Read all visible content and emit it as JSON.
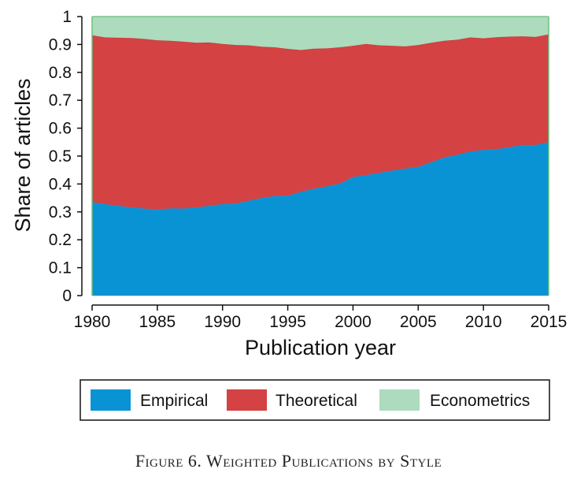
{
  "chart_data": {
    "type": "area",
    "stacked": true,
    "xlabel": "Publication year",
    "ylabel": "Share of articles",
    "xlim": [
      1980,
      2015
    ],
    "ylim": [
      0,
      1
    ],
    "xticks": [
      1980,
      1985,
      1990,
      1995,
      2000,
      2005,
      2010,
      2015
    ],
    "yticks": [
      0,
      0.1,
      0.2,
      0.3,
      0.4,
      0.5,
      0.6,
      0.7,
      0.8,
      0.9,
      1
    ],
    "ytick_labels": [
      "0",
      "0.1",
      "0.2",
      "0.3",
      "0.4",
      "0.5",
      "0.6",
      "0.7",
      "0.8",
      "0.9",
      "1"
    ],
    "grid": "horizontal",
    "legend_position": "bottom",
    "x": [
      1980,
      1981,
      1982,
      1983,
      1984,
      1985,
      1986,
      1987,
      1988,
      1989,
      1990,
      1991,
      1992,
      1993,
      1994,
      1995,
      1996,
      1997,
      1998,
      1999,
      2000,
      2001,
      2002,
      2003,
      2004,
      2005,
      2006,
      2007,
      2008,
      2009,
      2010,
      2011,
      2012,
      2013,
      2014,
      2015
    ],
    "series": [
      {
        "name": "Empirical",
        "color": "#0a93d4",
        "values": [
          0.335,
          0.328,
          0.322,
          0.316,
          0.312,
          0.308,
          0.313,
          0.312,
          0.316,
          0.322,
          0.328,
          0.33,
          0.34,
          0.35,
          0.357,
          0.358,
          0.372,
          0.383,
          0.392,
          0.402,
          0.425,
          0.432,
          0.44,
          0.448,
          0.455,
          0.462,
          0.478,
          0.495,
          0.505,
          0.517,
          0.522,
          0.525,
          0.532,
          0.54,
          0.54,
          0.55
        ]
      },
      {
        "name": "Theoretical",
        "color": "#d44243",
        "values": [
          0.598,
          0.597,
          0.602,
          0.607,
          0.608,
          0.607,
          0.6,
          0.598,
          0.59,
          0.585,
          0.574,
          0.568,
          0.557,
          0.542,
          0.533,
          0.526,
          0.508,
          0.502,
          0.494,
          0.488,
          0.47,
          0.47,
          0.457,
          0.447,
          0.438,
          0.436,
          0.428,
          0.418,
          0.412,
          0.408,
          0.4,
          0.401,
          0.396,
          0.389,
          0.387,
          0.386
        ]
      },
      {
        "name": "Econometrics",
        "color": "#acdbbd",
        "values": [
          0.067,
          0.075,
          0.076,
          0.077,
          0.08,
          0.085,
          0.087,
          0.09,
          0.094,
          0.093,
          0.098,
          0.102,
          0.103,
          0.108,
          0.11,
          0.116,
          0.12,
          0.115,
          0.114,
          0.11,
          0.105,
          0.098,
          0.103,
          0.105,
          0.107,
          0.102,
          0.094,
          0.087,
          0.083,
          0.075,
          0.078,
          0.074,
          0.072,
          0.071,
          0.073,
          0.064
        ]
      }
    ]
  },
  "caption": "Figure 6. Weighted Publications by Style"
}
